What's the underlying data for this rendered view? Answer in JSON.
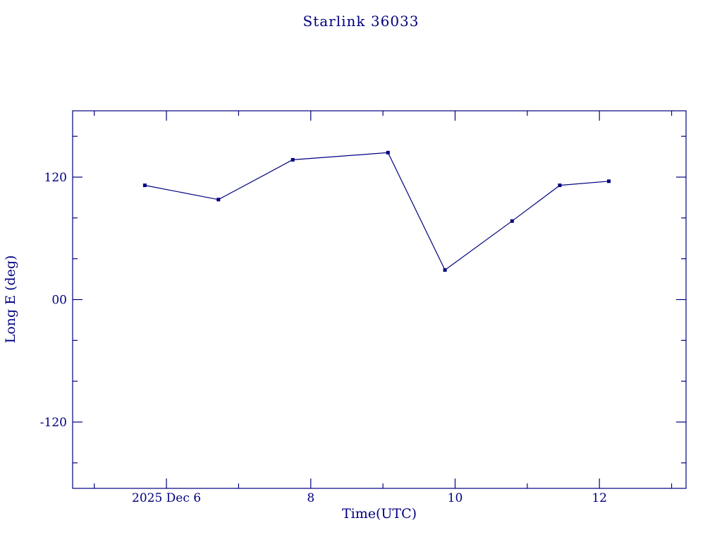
{
  "chart_data": {
    "type": "line",
    "title": "Starlink 36033",
    "xlabel": "Time(UTC)",
    "ylabel": "Long E (deg)",
    "series": [
      {
        "name": "Long E",
        "x": [
          5.7,
          6.72,
          7.75,
          9.07,
          9.86,
          10.79,
          11.45,
          12.13
        ],
        "y": [
          112,
          98,
          137,
          144,
          29,
          77,
          112,
          116
        ]
      }
    ],
    "xlim": [
      4.7,
      13.2
    ],
    "ylim": [
      -185,
      185
    ],
    "xticks": [
      {
        "v": 6,
        "label": "2025 Dec 6"
      },
      {
        "v": 8,
        "label": "8"
      },
      {
        "v": 10,
        "label": "10"
      },
      {
        "v": 12,
        "label": "12"
      }
    ],
    "x_minor_ticks": [
      5,
      7,
      9,
      11,
      13
    ],
    "yticks": [
      {
        "v": 120,
        "label": "120"
      },
      {
        "v": 0,
        "label": "00"
      },
      {
        "v": -120,
        "label": "-120"
      }
    ],
    "y_minor_ticks": [
      160,
      80,
      40,
      -40,
      -80,
      -160
    ],
    "grid": false,
    "legend": "none",
    "marker": "square",
    "accent_color": "#000080",
    "background_color": "#ffffff"
  }
}
